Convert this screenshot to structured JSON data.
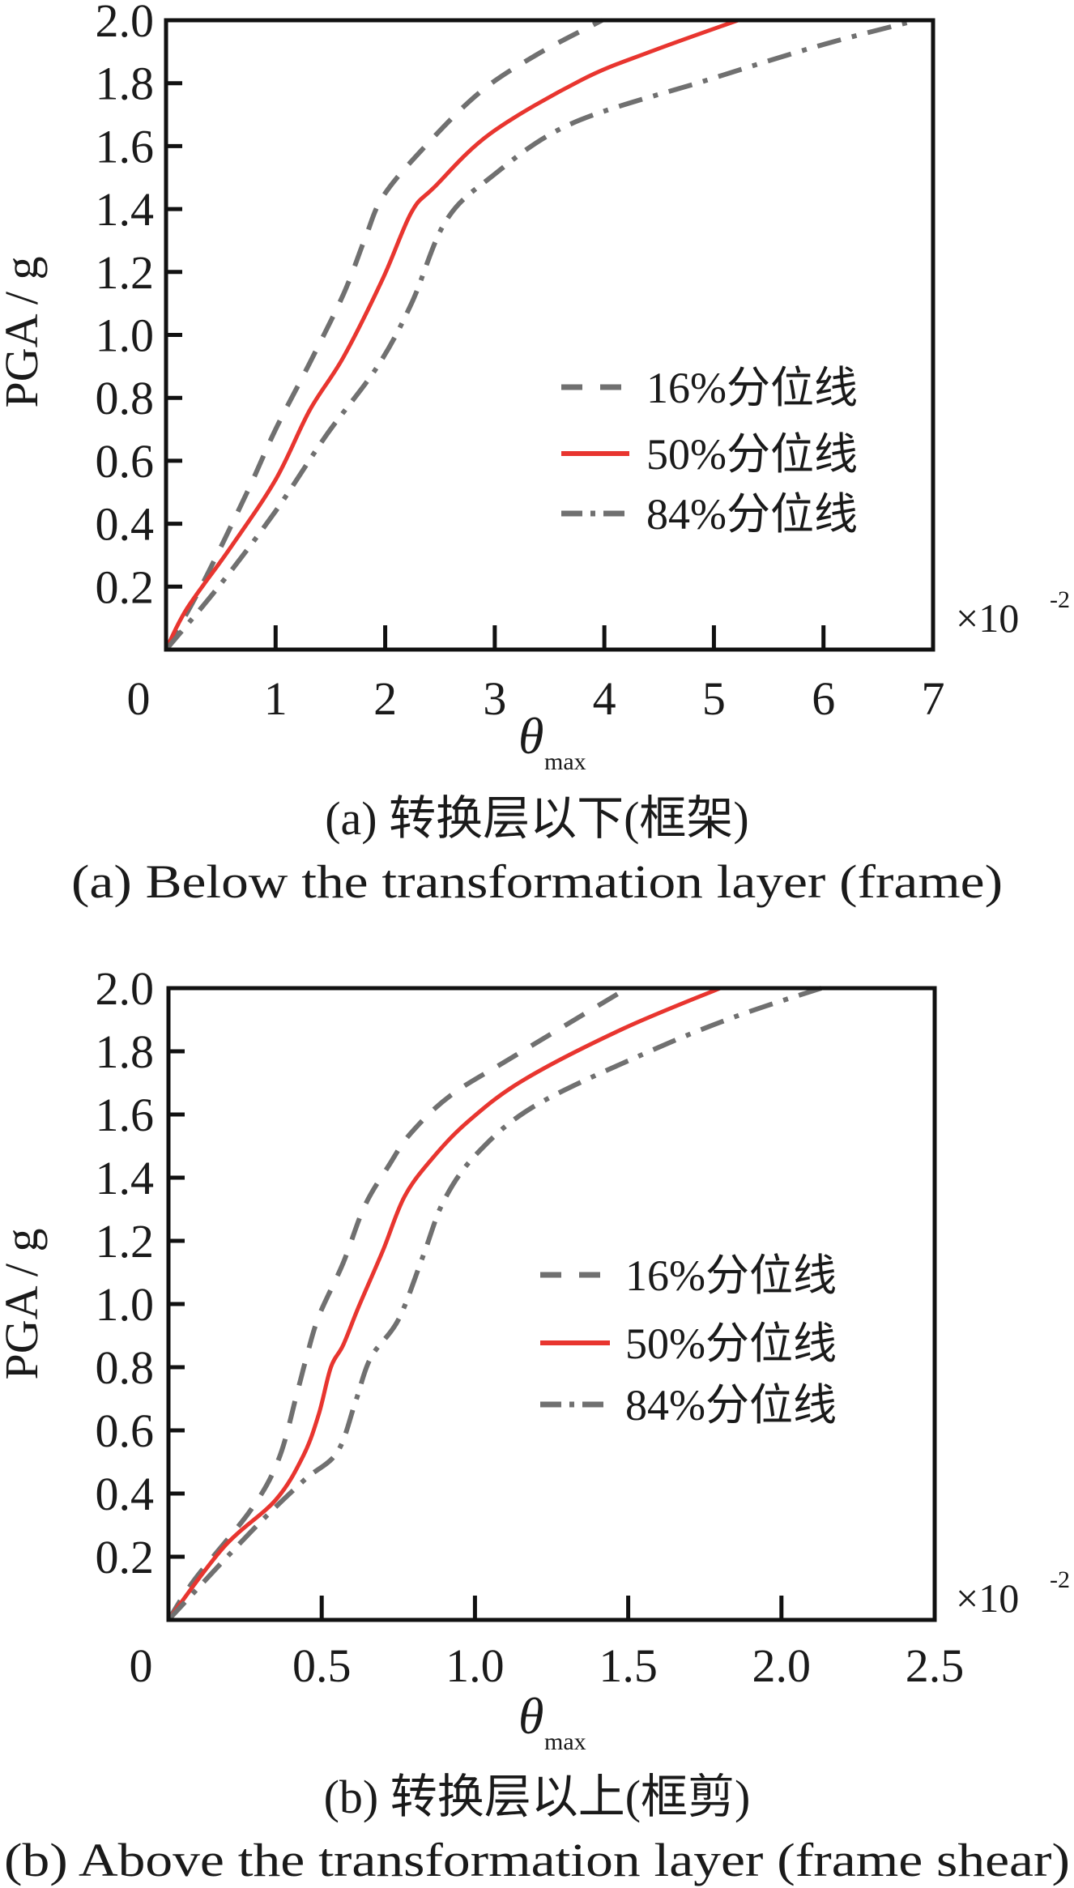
{
  "colors": {
    "q16": "#707070",
    "q50": "#e8352f",
    "q84": "#707070",
    "axis": "#111111"
  },
  "chart_data": [
    {
      "type": "line",
      "xlabel": "θ",
      "xlabel_sub": "max",
      "ylabel": "PGA / g",
      "x_multiplier": "×10",
      "x_multiplier_exp": "-2",
      "xlim": [
        0,
        7
      ],
      "ylim": [
        0,
        2.0
      ],
      "x_ticks": [
        0,
        1,
        2,
        3,
        4,
        5,
        6,
        7
      ],
      "x_tick_labels": [
        "0",
        "1",
        "2",
        "3",
        "4",
        "5",
        "6",
        "7"
      ],
      "y_ticks": [
        0.2,
        0.4,
        0.6,
        0.8,
        1.0,
        1.2,
        1.4,
        1.6,
        1.8,
        2.0
      ],
      "y_tick_labels": [
        "0.2",
        "0.4",
        "0.6",
        "0.8",
        "1.0",
        "1.2",
        "1.4",
        "1.6",
        "1.8",
        "2.0"
      ],
      "grid": false,
      "legend_position": "right-middle",
      "caption_cn": "(a) 转换层以下(框架)",
      "caption_en": "(a) Below the transformation layer (frame)",
      "series": [
        {
          "name": "16%分位线",
          "style": "dashed",
          "x": [
            0,
            0.32,
            0.74,
            1.0,
            1.31,
            1.62,
            1.82,
            1.98,
            2.34,
            2.86,
            3.38,
            3.98
          ],
          "y": [
            0,
            0.2,
            0.5,
            0.7,
            0.91,
            1.13,
            1.31,
            1.44,
            1.59,
            1.77,
            1.89,
            2.0
          ]
        },
        {
          "name": "50%分位线",
          "style": "solid",
          "x": [
            0,
            0.19,
            0.58,
            1.0,
            1.31,
            1.62,
            1.98,
            2.24,
            2.45,
            2.96,
            3.79,
            4.42,
            5.22
          ],
          "y": [
            0,
            0.13,
            0.32,
            0.54,
            0.76,
            0.93,
            1.18,
            1.39,
            1.47,
            1.64,
            1.81,
            1.9,
            2.0
          ]
        },
        {
          "name": "84%分位线",
          "style": "dashdot",
          "x": [
            0,
            0.48,
            1.0,
            1.46,
            1.93,
            2.24,
            2.55,
            2.96,
            3.69,
            4.94,
            5.97,
            6.85
          ],
          "y": [
            0,
            0.2,
            0.44,
            0.68,
            0.9,
            1.1,
            1.36,
            1.5,
            1.67,
            1.81,
            1.92,
            2.0
          ]
        }
      ]
    },
    {
      "type": "line",
      "xlabel": "θ",
      "xlabel_sub": "max",
      "ylabel": "PGA / g",
      "x_multiplier": "×10",
      "x_multiplier_exp": "-2",
      "xlim": [
        0,
        2.5
      ],
      "ylim": [
        0,
        2.0
      ],
      "x_ticks": [
        0,
        0.5,
        1.0,
        1.5,
        2.0,
        2.5
      ],
      "x_tick_labels": [
        "0",
        "0.5",
        "1.0",
        "1.5",
        "2.0",
        "2.5"
      ],
      "y_ticks": [
        0.2,
        0.4,
        0.6,
        0.8,
        1.0,
        1.2,
        1.4,
        1.6,
        1.8,
        2.0
      ],
      "y_tick_labels": [
        "0.2",
        "0.4",
        "0.6",
        "0.8",
        "1.0",
        "1.2",
        "1.4",
        "1.6",
        "1.8",
        "2.0"
      ],
      "grid": false,
      "legend_position": "right-middle",
      "caption_cn": "(b) 转换层以上(框剪)",
      "caption_en": "(b) Above the transformation layer (frame shear)",
      "series": [
        {
          "name": "16%分位线",
          "style": "dashed",
          "x": [
            0,
            0.087,
            0.27,
            0.36,
            0.42,
            0.45,
            0.49,
            0.57,
            0.64,
            0.72,
            0.79,
            0.92,
            1.12,
            1.48
          ],
          "y": [
            0,
            0.13,
            0.35,
            0.51,
            0.72,
            0.83,
            0.96,
            1.13,
            1.31,
            1.44,
            1.54,
            1.66,
            1.78,
            1.99
          ]
        },
        {
          "name": "50%分位线",
          "style": "solid",
          "x": [
            0,
            0.18,
            0.35,
            0.44,
            0.49,
            0.53,
            0.57,
            0.62,
            0.7,
            0.77,
            0.86,
            0.98,
            1.16,
            1.48,
            1.8
          ],
          "y": [
            0,
            0.23,
            0.38,
            0.52,
            0.65,
            0.8,
            0.87,
            0.99,
            1.17,
            1.34,
            1.46,
            1.58,
            1.71,
            1.87,
            2.0
          ]
        },
        {
          "name": "84%分位线",
          "style": "dashdot",
          "x": [
            0,
            0.27,
            0.44,
            0.55,
            0.61,
            0.66,
            0.75,
            0.83,
            0.9,
            1.01,
            1.2,
            1.57,
            1.85,
            2.13
          ],
          "y": [
            0,
            0.28,
            0.44,
            0.53,
            0.69,
            0.83,
            0.95,
            1.15,
            1.33,
            1.48,
            1.63,
            1.8,
            1.91,
            2.0
          ]
        }
      ]
    }
  ]
}
